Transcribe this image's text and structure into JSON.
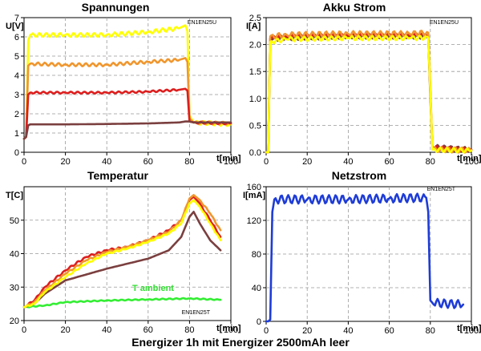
{
  "figure_caption": "Energizer 1h mit Energizer 2500mAh leer",
  "chart_data": [
    {
      "type": "line",
      "title": "Spannungen",
      "ylabel": "U[V]",
      "xlabel": "t[min]",
      "tag": "EN1EN25U",
      "xlim": [
        0,
        100
      ],
      "ylim": [
        0,
        7
      ],
      "xticks": [
        0,
        20,
        40,
        60,
        80,
        100
      ],
      "yticks": [
        0,
        1,
        2,
        3,
        4,
        5,
        6,
        7
      ],
      "grid": true,
      "series": [
        {
          "color": "#ffff00",
          "wobble": 0.1,
          "points": [
            [
              0,
              0.7
            ],
            [
              1,
              0.8
            ],
            [
              2,
              5.8
            ],
            [
              3,
              6.1
            ],
            [
              20,
              6.1
            ],
            [
              40,
              6.1
            ],
            [
              60,
              6.25
            ],
            [
              75,
              6.45
            ],
            [
              78,
              6.6
            ],
            [
              79,
              6.3
            ],
            [
              80,
              1.9
            ],
            [
              82,
              1.55
            ],
            [
              100,
              1.45
            ]
          ]
        },
        {
          "color": "#f0962d",
          "wobble": 0.08,
          "points": [
            [
              0,
              0.7
            ],
            [
              1,
              0.8
            ],
            [
              2,
              4.5
            ],
            [
              3,
              4.6
            ],
            [
              20,
              4.55
            ],
            [
              40,
              4.55
            ],
            [
              60,
              4.7
            ],
            [
              75,
              4.8
            ],
            [
              78,
              4.9
            ],
            [
              79,
              4.7
            ],
            [
              80,
              1.75
            ],
            [
              82,
              1.55
            ],
            [
              100,
              1.5
            ]
          ]
        },
        {
          "color": "#dd1e1e",
          "wobble": 0.05,
          "points": [
            [
              0,
              0.7
            ],
            [
              1,
              0.8
            ],
            [
              2,
              3.0
            ],
            [
              3,
              3.1
            ],
            [
              20,
              3.1
            ],
            [
              40,
              3.1
            ],
            [
              60,
              3.15
            ],
            [
              75,
              3.25
            ],
            [
              78,
              3.3
            ],
            [
              79,
              3.2
            ],
            [
              80,
              1.6
            ],
            [
              82,
              1.55
            ],
            [
              100,
              1.5
            ]
          ]
        },
        {
          "color": "#7b3f3f",
          "wobble": 0.0,
          "points": [
            [
              0,
              0.7
            ],
            [
              1,
              0.8
            ],
            [
              2,
              1.4
            ],
            [
              3,
              1.45
            ],
            [
              20,
              1.45
            ],
            [
              40,
              1.47
            ],
            [
              60,
              1.5
            ],
            [
              75,
              1.55
            ],
            [
              78,
              1.6
            ],
            [
              80,
              1.6
            ],
            [
              82,
              1.55
            ],
            [
              100,
              1.55
            ]
          ]
        }
      ]
    },
    {
      "type": "line",
      "title": "Akku Strom",
      "ylabel": "I[A]",
      "xlabel": "t[min]",
      "tag": "EN1EN25U",
      "xlim": [
        0,
        100
      ],
      "ylim": [
        0,
        2.5
      ],
      "xticks": [
        0,
        20,
        40,
        60,
        80,
        100
      ],
      "yticks": [
        0.0,
        0.5,
        1.0,
        1.5,
        2.0,
        2.5
      ],
      "ytick_labels": [
        "0.0",
        "0.5",
        "1.0",
        "1.5",
        "2.0",
        "2.5"
      ],
      "grid": true,
      "series": [
        {
          "color": "#7b3f3f",
          "wobble": 0.04,
          "points": [
            [
              0,
              0.0
            ],
            [
              1,
              0.0
            ],
            [
              2,
              2.1
            ],
            [
              10,
              2.12
            ],
            [
              40,
              2.15
            ],
            [
              70,
              2.15
            ],
            [
              79,
              2.15
            ],
            [
              80,
              1.0
            ],
            [
              81,
              0.1
            ],
            [
              100,
              0.05
            ]
          ]
        },
        {
          "color": "#dd1e1e",
          "wobble": 0.04,
          "points": [
            [
              0,
              0.0
            ],
            [
              1,
              0.0
            ],
            [
              2,
              2.12
            ],
            [
              10,
              2.15
            ],
            [
              40,
              2.17
            ],
            [
              70,
              2.17
            ],
            [
              79,
              2.18
            ],
            [
              80,
              1.1
            ],
            [
              81,
              0.08
            ],
            [
              100,
              0.04
            ]
          ]
        },
        {
          "color": "#f0962d",
          "wobble": 0.05,
          "points": [
            [
              0,
              0.0
            ],
            [
              1,
              0.0
            ],
            [
              2,
              2.15
            ],
            [
              10,
              2.18
            ],
            [
              40,
              2.2
            ],
            [
              70,
              2.2
            ],
            [
              79,
              2.22
            ],
            [
              80,
              1.2
            ],
            [
              81,
              0.05
            ],
            [
              100,
              0.04
            ]
          ]
        },
        {
          "color": "#ffff00",
          "wobble": 0.04,
          "points": [
            [
              0,
              0.0
            ],
            [
              1,
              0.0
            ],
            [
              2,
              2.05
            ],
            [
              10,
              2.1
            ],
            [
              40,
              2.12
            ],
            [
              70,
              2.12
            ],
            [
              79,
              2.13
            ],
            [
              80,
              1.1
            ],
            [
              81,
              0.05
            ],
            [
              100,
              0.03
            ]
          ]
        }
      ]
    },
    {
      "type": "line",
      "title": "Temperatur",
      "ylabel": "T[C]",
      "xlabel": "t[min]",
      "tag": "EN1EN25T",
      "annotation": "T ambient",
      "annotation_color": "#33dd33",
      "xlim": [
        0,
        100
      ],
      "ylim": [
        20,
        60
      ],
      "xticks": [
        0,
        20,
        40,
        60,
        80,
        100
      ],
      "yticks": [
        20,
        30,
        40,
        50
      ],
      "grid": true,
      "series": [
        {
          "color": "#33ee33",
          "wobble": 0.15,
          "points": [
            [
              0,
              24
            ],
            [
              10,
              24.5
            ],
            [
              20,
              25.5
            ],
            [
              40,
              26
            ],
            [
              60,
              26.3
            ],
            [
              80,
              26.6
            ],
            [
              95,
              26.2
            ]
          ]
        },
        {
          "color": "#7b3f3f",
          "wobble": 0.0,
          "points": [
            [
              0,
              24
            ],
            [
              5,
              25
            ],
            [
              10,
              28
            ],
            [
              20,
              32
            ],
            [
              40,
              35.5
            ],
            [
              60,
              38.5
            ],
            [
              70,
              41
            ],
            [
              76,
              45
            ],
            [
              80,
              51
            ],
            [
              82,
              52.5
            ],
            [
              85,
              49
            ],
            [
              90,
              44
            ],
            [
              95,
              41
            ]
          ]
        },
        {
          "color": "#dd1e1e",
          "wobble": 0.3,
          "points": [
            [
              0,
              24
            ],
            [
              5,
              26
            ],
            [
              10,
              30
            ],
            [
              20,
              35
            ],
            [
              30,
              39
            ],
            [
              40,
              41
            ],
            [
              50,
              42
            ],
            [
              60,
              44
            ],
            [
              70,
              47
            ],
            [
              76,
              50
            ],
            [
              80,
              56
            ],
            [
              82,
              57
            ],
            [
              85,
              55
            ],
            [
              90,
              50
            ],
            [
              95,
              45
            ]
          ]
        },
        {
          "color": "#f0962d",
          "wobble": 0.25,
          "points": [
            [
              0,
              24
            ],
            [
              5,
              25.5
            ],
            [
              10,
              29
            ],
            [
              20,
              34
            ],
            [
              30,
              38
            ],
            [
              40,
              40.5
            ],
            [
              50,
              42
            ],
            [
              60,
              44
            ],
            [
              70,
              46.5
            ],
            [
              76,
              50
            ],
            [
              80,
              56.5
            ],
            [
              82,
              57.5
            ],
            [
              85,
              56
            ],
            [
              90,
              52
            ],
            [
              95,
              47
            ]
          ]
        },
        {
          "color": "#ffff00",
          "wobble": 0.2,
          "points": [
            [
              0,
              24
            ],
            [
              5,
              25
            ],
            [
              10,
              28.5
            ],
            [
              20,
              33
            ],
            [
              30,
              37
            ],
            [
              40,
              40
            ],
            [
              50,
              41.5
            ],
            [
              60,
              43.5
            ],
            [
              70,
              46
            ],
            [
              76,
              49
            ],
            [
              80,
              55
            ],
            [
              82,
              56
            ],
            [
              85,
              54
            ],
            [
              90,
              49
            ],
            [
              95,
              44
            ]
          ]
        }
      ]
    },
    {
      "type": "line",
      "title": "Netzstrom",
      "ylabel": "I[mA]",
      "xlabel": "t[min]",
      "tag": "EN1EN25T",
      "xlim": [
        0,
        100
      ],
      "ylim": [
        0,
        160
      ],
      "xticks": [
        0,
        20,
        40,
        60,
        80,
        100
      ],
      "yticks": [
        0,
        40,
        80,
        120,
        160
      ],
      "grid": true,
      "series": [
        {
          "color": "#1e3cd7",
          "wobble": 5,
          "points": [
            [
              0,
              0
            ],
            [
              1,
              0
            ],
            [
              2,
              2
            ],
            [
              3,
              130
            ],
            [
              4,
              145
            ],
            [
              20,
              145
            ],
            [
              40,
              145
            ],
            [
              60,
              146
            ],
            [
              78,
              147
            ],
            [
              79,
              130
            ],
            [
              80,
              25
            ],
            [
              81,
              22
            ],
            [
              96,
              20
            ]
          ]
        }
      ]
    }
  ]
}
